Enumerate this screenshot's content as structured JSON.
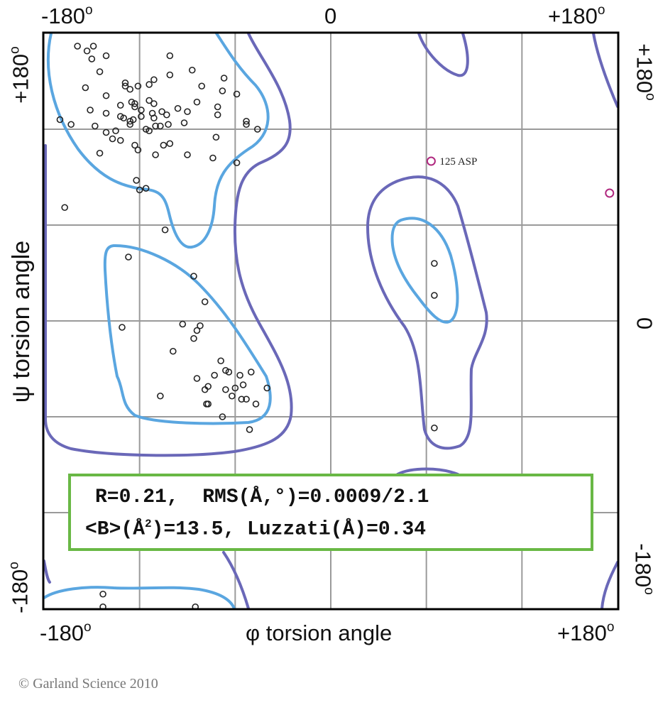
{
  "chart_data": {
    "type": "scatter",
    "xlabel": "φ torsion angle",
    "ylabel": "ψ torsion angle",
    "xlim": [
      -180,
      180
    ],
    "ylim": [
      -180,
      180
    ],
    "grid": true,
    "grid_step": 60,
    "tick_labels": {
      "top": [
        "-180",
        "0",
        "+180"
      ],
      "bottom": [
        "-180",
        "+180"
      ],
      "left": [
        "+180",
        "-180"
      ],
      "right": [
        "+180",
        "0",
        "-180"
      ],
      "degree_symbol": "o"
    },
    "colors": {
      "points": "#222222",
      "outliers": "#b0287f",
      "core_contour": "#5aa6e0",
      "allowed_contour": "#6a68b8",
      "box_border": "#69b845"
    },
    "points": [
      [
        -159,
        172
      ],
      [
        -149,
        172
      ],
      [
        -153,
        169
      ],
      [
        -150,
        164
      ],
      [
        -141,
        166
      ],
      [
        -145,
        156
      ],
      [
        -101,
        166
      ],
      [
        -101,
        154
      ],
      [
        -87,
        157
      ],
      [
        -67,
        152
      ],
      [
        -81,
        147
      ],
      [
        -68,
        144
      ],
      [
        -59,
        142
      ],
      [
        -154,
        146
      ],
      [
        -141,
        141
      ],
      [
        -129,
        149
      ],
      [
        -129,
        147
      ],
      [
        -126,
        145
      ],
      [
        -121,
        147
      ],
      [
        -114,
        148
      ],
      [
        -111,
        151
      ],
      [
        -151,
        132
      ],
      [
        -141,
        130
      ],
      [
        -132,
        135
      ],
      [
        -125,
        137
      ],
      [
        -123,
        136
      ],
      [
        -123,
        134
      ],
      [
        -119,
        132
      ],
      [
        -119,
        128
      ],
      [
        -114,
        138
      ],
      [
        -111,
        136
      ],
      [
        -112,
        130
      ],
      [
        -111,
        127
      ],
      [
        -106,
        131
      ],
      [
        -103,
        129
      ],
      [
        -96,
        133
      ],
      [
        -90,
        131
      ],
      [
        -84,
        137
      ],
      [
        -71,
        134
      ],
      [
        -71,
        129
      ],
      [
        -170,
        126
      ],
      [
        -163,
        123
      ],
      [
        -148,
        122
      ],
      [
        -132,
        128
      ],
      [
        -130,
        127
      ],
      [
        -126,
        125
      ],
      [
        -124,
        126
      ],
      [
        -126,
        123
      ],
      [
        -116,
        120
      ],
      [
        -114,
        119
      ],
      [
        -110,
        122
      ],
      [
        -107,
        122
      ],
      [
        -102,
        123
      ],
      [
        -92,
        124
      ],
      [
        -53,
        125
      ],
      [
        -53,
        123
      ],
      [
        -46,
        120
      ],
      [
        -141,
        118
      ],
      [
        -135,
        119
      ],
      [
        -137,
        114
      ],
      [
        -132,
        113
      ],
      [
        -123,
        110
      ],
      [
        -121,
        107
      ],
      [
        -105,
        110
      ],
      [
        -101,
        111
      ],
      [
        -110,
        104
      ],
      [
        -90,
        104
      ],
      [
        -74,
        102
      ],
      [
        -72,
        115
      ],
      [
        -59,
        99
      ],
      [
        -145,
        105
      ],
      [
        -122,
        88
      ],
      [
        -120,
        82
      ],
      [
        -116,
        83
      ],
      [
        -167,
        71
      ],
      [
        -104,
        57
      ],
      [
        -127,
        40
      ],
      [
        -86,
        28
      ],
      [
        -79,
        12
      ],
      [
        -131,
        -4
      ],
      [
        -93,
        -2
      ],
      [
        -82,
        -3
      ],
      [
        -84,
        -6
      ],
      [
        -86,
        -11
      ],
      [
        -99,
        -19
      ],
      [
        -69,
        -25
      ],
      [
        -66,
        -31
      ],
      [
        -64,
        -32
      ],
      [
        -73,
        -34
      ],
      [
        -84,
        -36
      ],
      [
        -57,
        -34
      ],
      [
        -50,
        -32
      ],
      [
        -55,
        -40
      ],
      [
        -79,
        -43
      ],
      [
        -77,
        -41
      ],
      [
        -66,
        -43
      ],
      [
        -60,
        -42
      ],
      [
        -40,
        -42
      ],
      [
        -62,
        -47
      ],
      [
        -56,
        -49
      ],
      [
        -53,
        -49
      ],
      [
        -47,
        -52
      ],
      [
        -78,
        -52
      ],
      [
        -77,
        -52
      ],
      [
        -107,
        -47
      ],
      [
        -68,
        -60
      ],
      [
        -51,
        -68
      ],
      [
        65,
        36
      ],
      [
        65,
        16
      ],
      [
        65,
        -67
      ],
      [
        -143,
        -171
      ],
      [
        -143,
        -179
      ],
      [
        -85,
        -179
      ]
    ],
    "outliers": [
      {
        "phi": 63,
        "psi": 100,
        "label": "125 ASP"
      },
      {
        "phi": 175,
        "psi": 80,
        "label": ""
      }
    ],
    "annotation": {
      "line1": "R=0.21,  RMS(Å,°)=0.0009/2.1",
      "line2_prefix": "<B>(Å",
      "line2_sup": "2",
      "line2_suffix": ")=13.5, Luzzati(Å)=0.34"
    }
  },
  "copyright": "© Garland Science 2010"
}
